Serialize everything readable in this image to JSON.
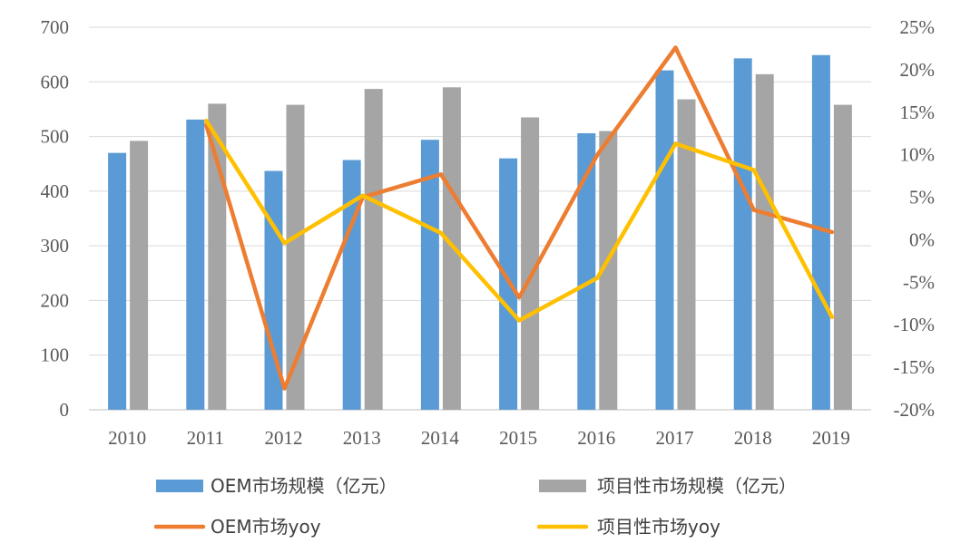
{
  "chart_data": {
    "type": "bar",
    "categories": [
      "2010",
      "2011",
      "2012",
      "2013",
      "2014",
      "2015",
      "2016",
      "2017",
      "2018",
      "2019"
    ],
    "y_left": {
      "min": 0,
      "max": 700,
      "ticks": [
        0,
        100,
        200,
        300,
        400,
        500,
        600,
        700
      ]
    },
    "y_right": {
      "min": -20,
      "max": 25,
      "ticks": [
        "-20%",
        "-15%",
        "-10%",
        "-5%",
        "0%",
        "5%",
        "10%",
        "15%",
        "20%",
        "25%"
      ],
      "tick_values": [
        -20,
        -15,
        -10,
        -5,
        0,
        5,
        10,
        15,
        20,
        25
      ]
    },
    "grid": "horizontal",
    "legend_position": "bottom",
    "series": [
      {
        "name": "OEM市场规模（亿元）",
        "kind": "bar",
        "axis": "left",
        "color": "#5B9BD5",
        "values": [
          470,
          531,
          437,
          457,
          494,
          460,
          506,
          621,
          643,
          649
        ]
      },
      {
        "name": "项目性市场规模（亿元）",
        "kind": "bar",
        "axis": "left",
        "color": "#A5A5A5",
        "values": [
          492,
          560,
          558,
          587,
          590,
          535,
          510,
          568,
          614,
          558
        ]
      },
      {
        "name": "OEM市场yoy",
        "kind": "line",
        "axis": "right",
        "color": "#ED7D31",
        "values": [
          null,
          13.5,
          -17.5,
          5.0,
          7.7,
          -6.8,
          10.0,
          22.6,
          3.5,
          0.9
        ]
      },
      {
        "name": "项目性市场yoy",
        "kind": "line",
        "axis": "right",
        "color": "#FFC000",
        "values": [
          null,
          14.0,
          -0.4,
          5.2,
          0.8,
          -9.5,
          -4.5,
          11.3,
          8.2,
          -9.1
        ]
      }
    ]
  }
}
